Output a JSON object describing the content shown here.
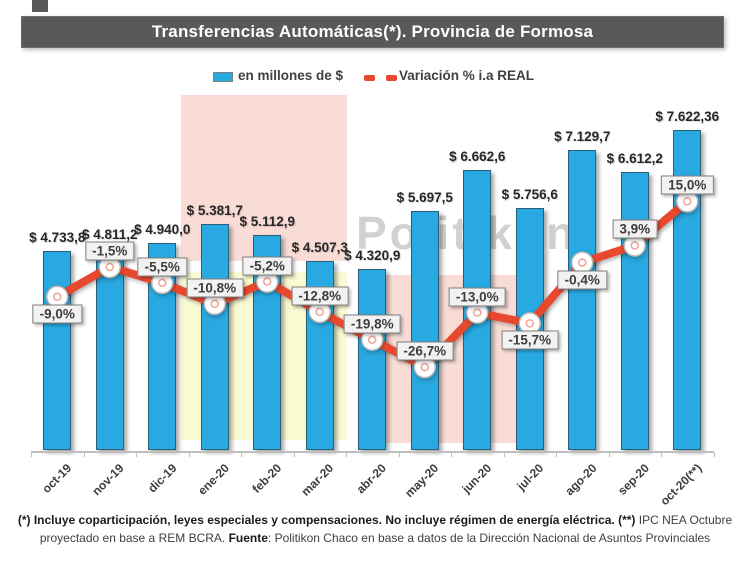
{
  "title": "Transferencias Automáticas(*). Provincia de Formosa",
  "watermark": "Politikon",
  "legend": {
    "bar_series_label": "en millones de $",
    "line_series_label": "Variación % i.a REAL"
  },
  "colors": {
    "bar_fill": "#29a9e1",
    "line_stroke": "#e8492e",
    "banner_bg": "#595959",
    "pink_region": "#f9dcd6",
    "yellow_region": "#fafad2",
    "axis": "#bfbfbf"
  },
  "chart_data": {
    "type": "bar+line combo",
    "title": "Transferencias Automáticas(*). Provincia de Formosa",
    "categories": [
      "oct-19",
      "nov-19",
      "dic-19",
      "ene-20",
      "feb-20",
      "mar-20",
      "abr-20",
      "may-20",
      "jun-20",
      "jul-20",
      "ago-20",
      "sep-20",
      "oct-20(**)"
    ],
    "series": [
      {
        "name": "en millones de $",
        "type": "bar",
        "values": [
          4733.8,
          4811.2,
          4940.0,
          5381.7,
          5112.9,
          4507.3,
          4320.9,
          5697.5,
          6662.6,
          5756.6,
          7129.7,
          6612.2,
          7622.36
        ],
        "data_labels": [
          "$ 4.733,8",
          "$ 4.811,2",
          "$ 4.940,0",
          "$ 5.381,7",
          "$ 5.112,9",
          "$ 4.507,3",
          "$ 4.320,9",
          "$ 5.697,5",
          "$ 6.662,6",
          "$ 5.756,6",
          "$ 7.129,7",
          "$ 6.612,2",
          "$ 7.622,36"
        ]
      },
      {
        "name": "Variación % i.a REAL",
        "type": "line",
        "values": [
          -9.0,
          -1.5,
          -5.5,
          -10.8,
          -5.2,
          -12.8,
          -19.8,
          -26.7,
          -13.0,
          -15.7,
          -0.4,
          3.9,
          15.0
        ],
        "data_labels": [
          "-9,0%",
          "-1,5%",
          "-5,5%",
          "-10,8%",
          "-5,2%",
          "-12,8%",
          "-19,8%",
          "-26,7%",
          "-13,0%",
          "-15,7%",
          "-0,4%",
          "3,9%",
          "15,0%"
        ],
        "label_side": [
          "below",
          "above",
          "above",
          "above",
          "above",
          "above",
          "above",
          "above",
          "above",
          "below",
          "below",
          "above",
          "above"
        ]
      }
    ],
    "highlight_regions": [
      {
        "name": "pink-upper",
        "color": "#f9dcd6",
        "from": "ene-20",
        "to": "mar-20"
      },
      {
        "name": "yellow-lower",
        "color": "#fafad2",
        "from": "ene-20",
        "to": "mar-20"
      },
      {
        "name": "pink-lower-right",
        "color": "#f9dcd6",
        "from": "abr-20",
        "to": "jul-20"
      }
    ],
    "legend_position": "top",
    "grid": false,
    "value_axis_visible": false
  },
  "footnote": {
    "line1": [
      {
        "text": "(*) Incluye coparticipación, leyes especiales y compensaciones. No incluye régimen de energía eléctrica. (**)",
        "bold": true
      },
      {
        "text": " IPC NEA Octubre",
        "bold": false
      }
    ],
    "line2": [
      {
        "text": "proyectado en base a REM BCRA. ",
        "bold": false
      },
      {
        "text": "Fuente",
        "bold": true
      },
      {
        "text": ": Politikon Chaco en base a datos de la Dirección Nacional de Asuntos Provinciales",
        "bold": false
      }
    ]
  }
}
